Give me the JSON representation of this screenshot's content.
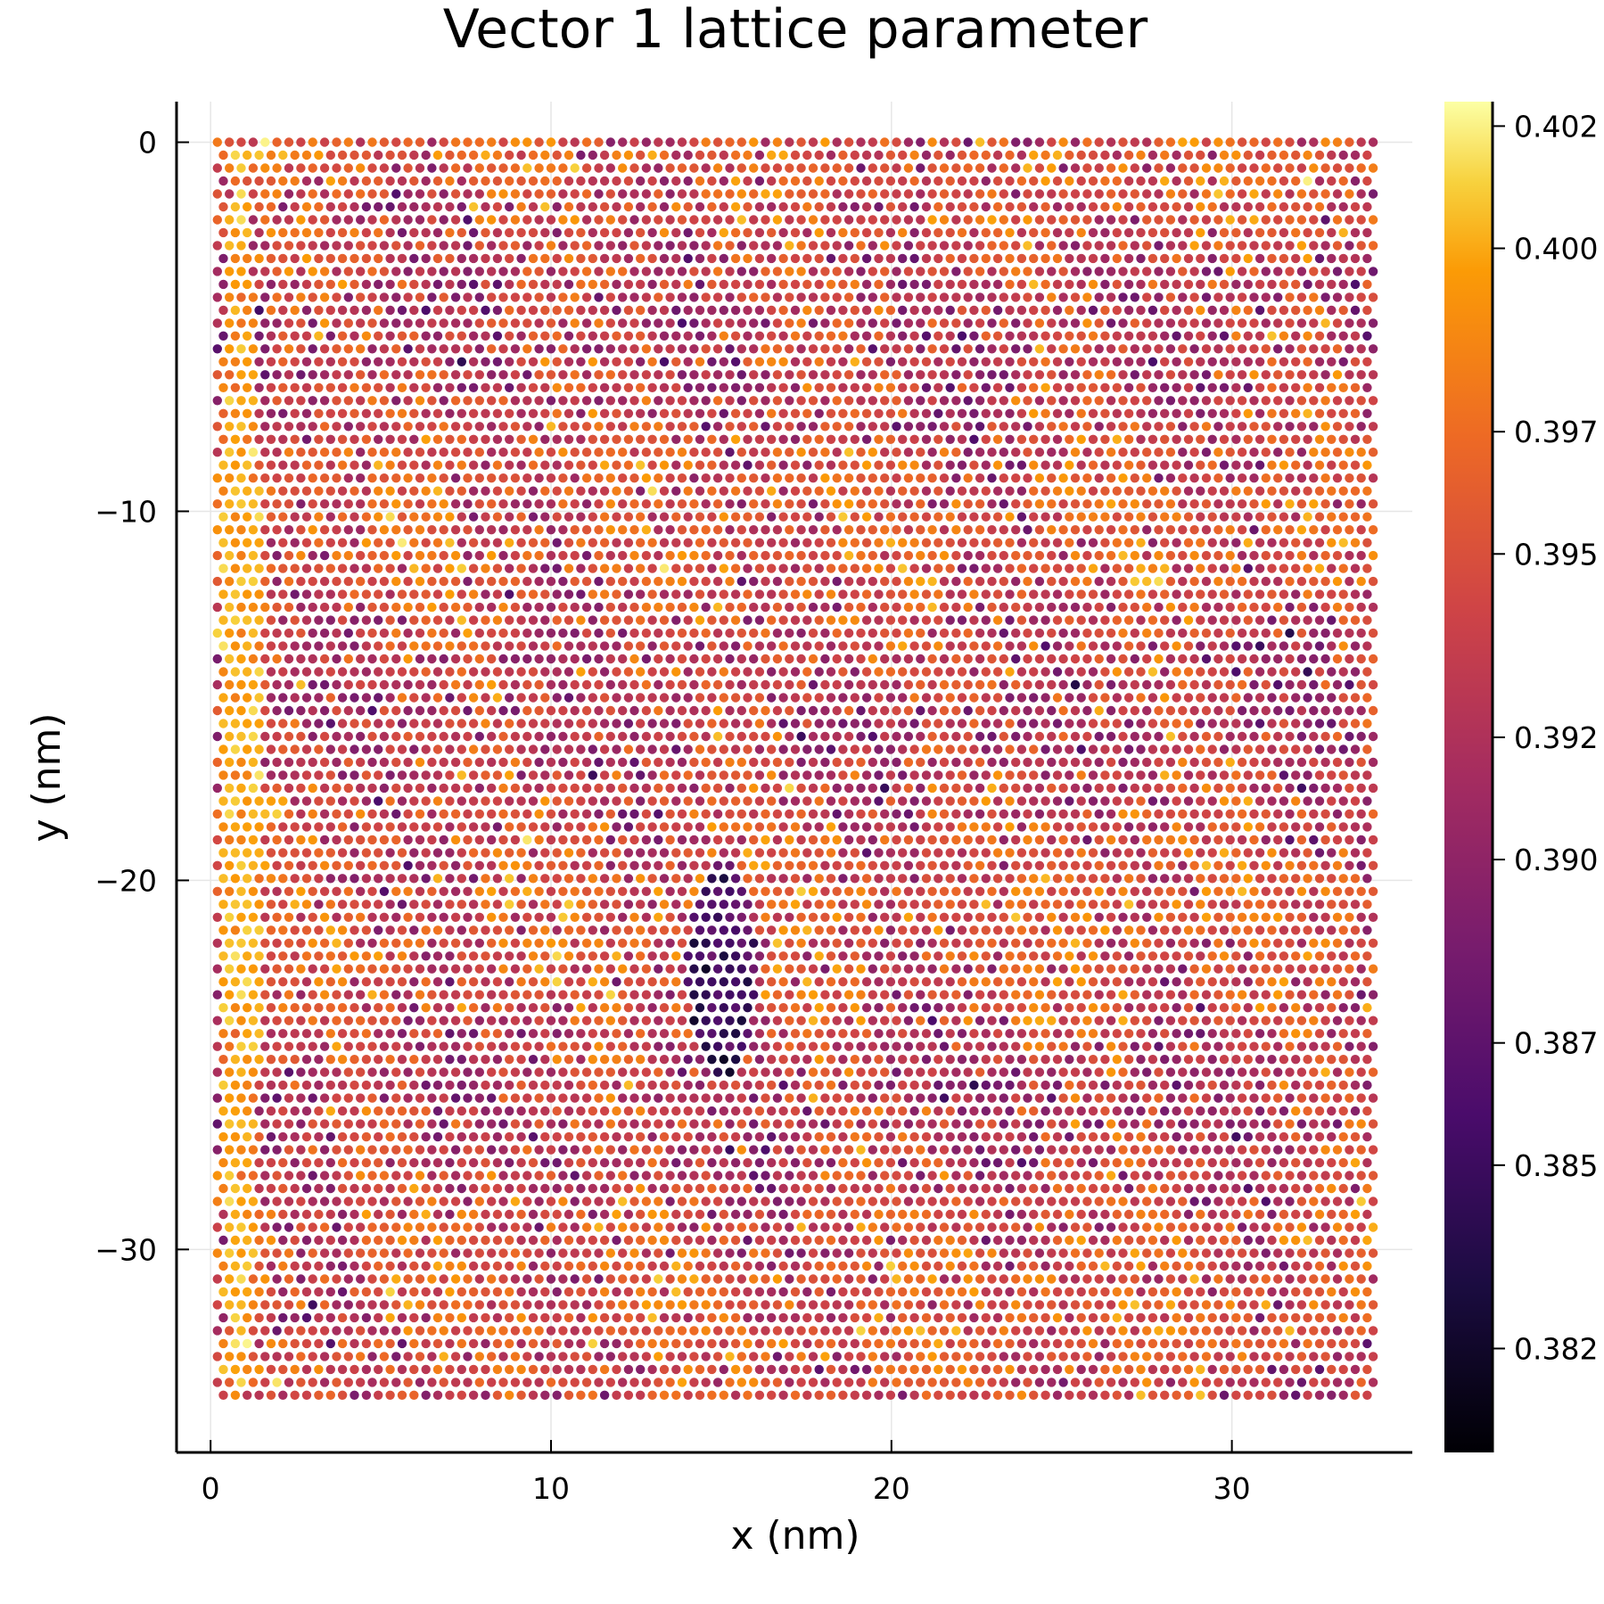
{
  "chart_data": {
    "type": "scatter",
    "title": "Vector 1 lattice parameter",
    "xlabel": "x (nm)",
    "ylabel": "y (nm)",
    "xlim": [
      -1,
      35.3
    ],
    "ylim": [
      -35.5,
      1.1
    ],
    "xticks": [
      0,
      10,
      20,
      30
    ],
    "xtick_labels": [
      "0",
      "10",
      "20",
      "30"
    ],
    "yticks": [
      0,
      -10,
      -20,
      -30
    ],
    "ytick_labels": [
      "0",
      "−10",
      "−20",
      "−30"
    ],
    "grid": true,
    "legend": "none",
    "marker_shape": "circle",
    "colormap": "inferno",
    "colorbar": {
      "label": "",
      "range": [
        0.3803,
        0.4024
      ],
      "ticks": [
        0.382,
        0.385,
        0.387,
        0.39,
        0.392,
        0.395,
        0.397,
        0.4,
        0.402
      ],
      "tick_labels": [
        "0.382",
        "0.385",
        "0.387",
        "0.390",
        "0.392",
        "0.395",
        "0.397",
        "0.400",
        "0.402"
      ]
    },
    "lattice": {
      "x_range": [
        0.2,
        34.3
      ],
      "y_range": [
        -34.0,
        0.0
      ],
      "row_spacing": 0.35,
      "column_spacing": 0.35
    },
    "mean_value": 0.3925,
    "notable_regions": [
      {
        "description": "low-value cluster",
        "x": [
          14.0,
          16.0
        ],
        "y": [
          -19.5,
          -25.5
        ],
        "value": 0.381
      },
      {
        "description": "high-value patches",
        "x": [
          0.2,
          1.5
        ],
        "y": [
          0.0,
          -34.0
        ],
        "value": 0.401
      }
    ]
  }
}
